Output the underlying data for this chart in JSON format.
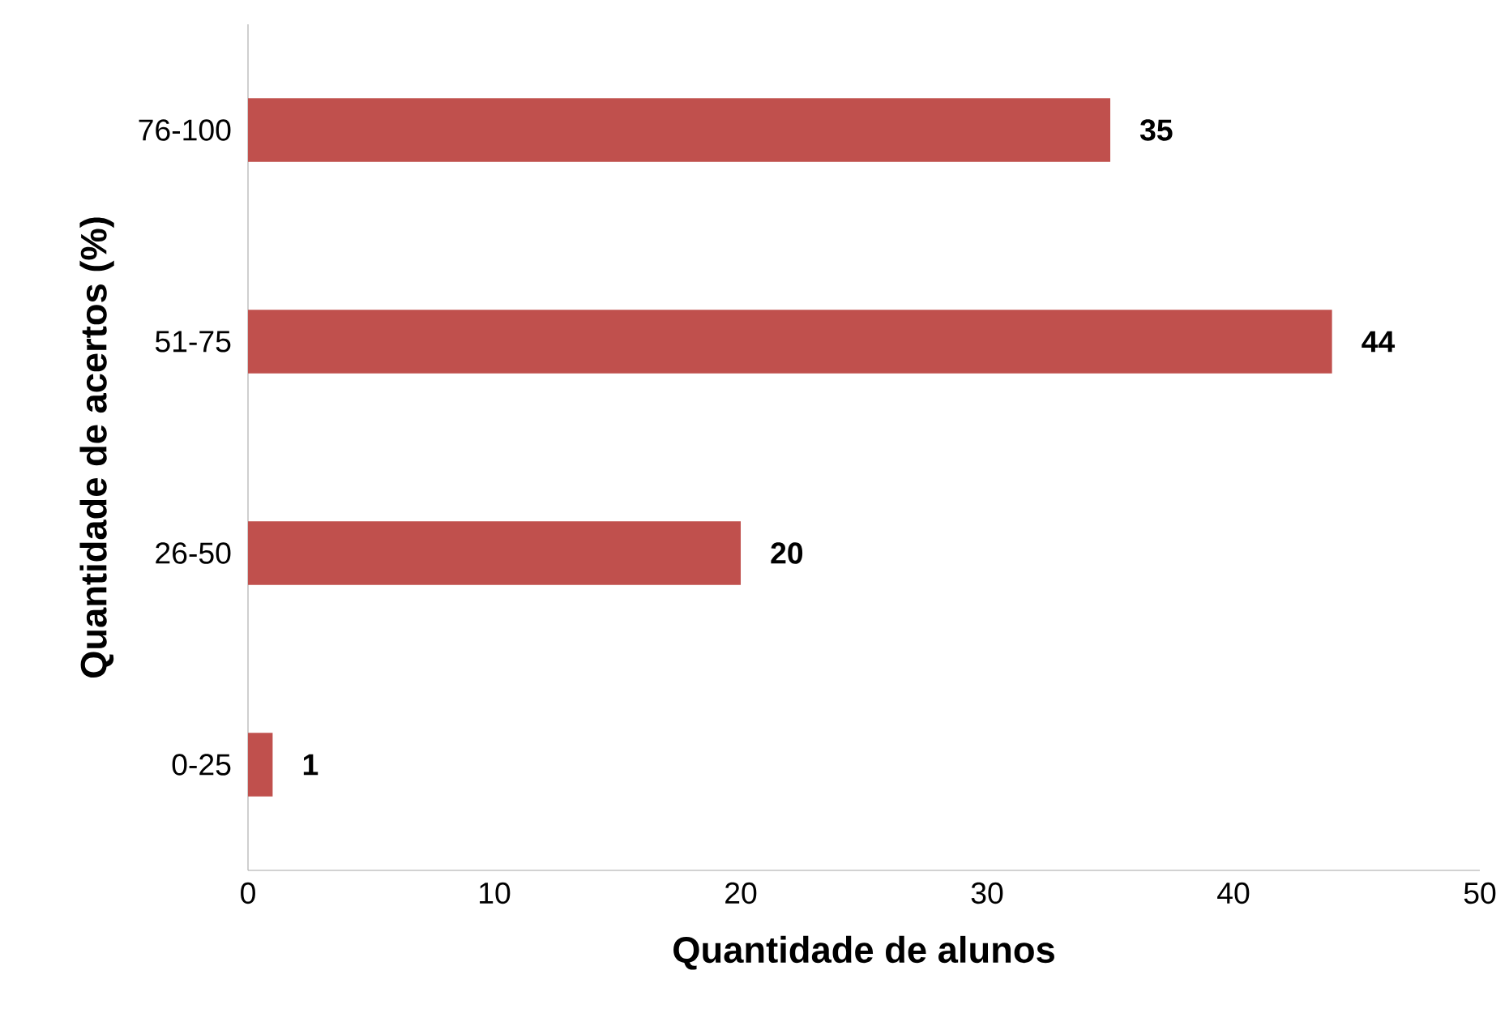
{
  "chart_data": {
    "type": "bar",
    "orientation": "horizontal",
    "categories": [
      "76-100",
      "51-75",
      "26-50",
      "0-25"
    ],
    "values": [
      35,
      44,
      20,
      1
    ],
    "color": "#c0504d",
    "xlim": [
      0,
      50
    ],
    "xticks": [
      0,
      10,
      20,
      30,
      40,
      50
    ],
    "xlabel": "Quantidade de alunos",
    "ylabel": "Quantidade de acertos (%)",
    "data_labels": true,
    "grid": false
  }
}
